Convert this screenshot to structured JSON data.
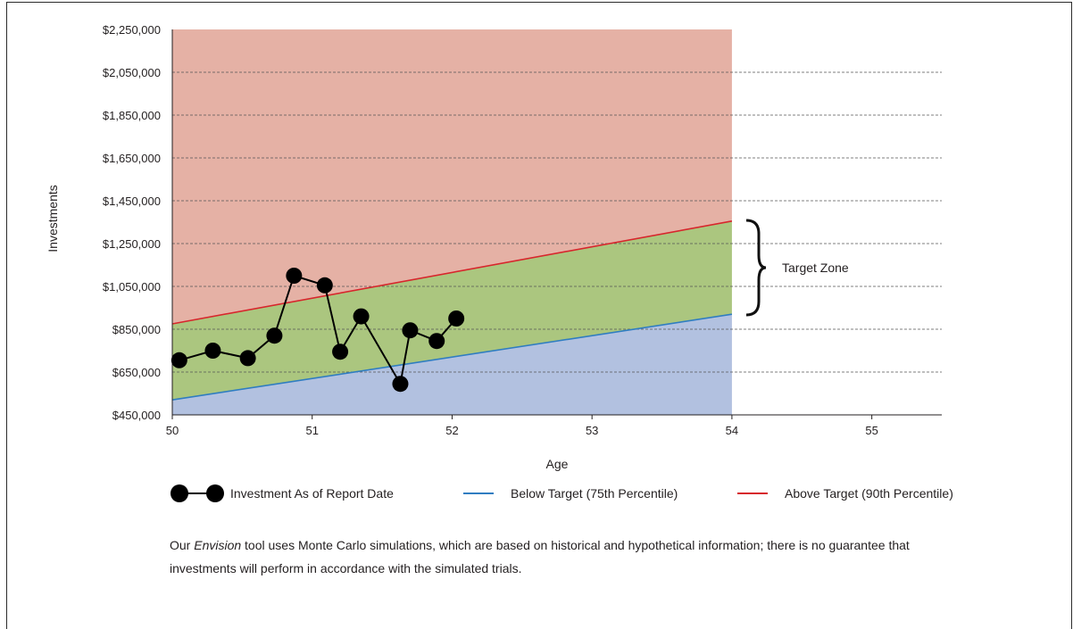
{
  "chart_data": {
    "type": "line",
    "xlabel": "Age",
    "ylabel": "Investments",
    "xlim": [
      50,
      55.5
    ],
    "ylim": [
      450000,
      2250000
    ],
    "x_ticks": [
      "50",
      "51",
      "52",
      "53",
      "54",
      "55"
    ],
    "y_ticks": [
      "$2,250,000",
      "$2,050,000",
      "$1,850,000",
      "$1,650,000",
      "$1,450,000",
      "$1,250,000",
      "$1,050,000",
      "$850,000",
      "$650,000",
      "$450,000"
    ],
    "y_tick_values": [
      2250000,
      2050000,
      1850000,
      1650000,
      1450000,
      1250000,
      1050000,
      850000,
      650000,
      450000
    ],
    "grid": "horizontal dashed",
    "zone_end_x": 54,
    "series": [
      {
        "name": "Investment As of Report Date",
        "kind": "markers-line",
        "color": "#000000",
        "x": [
          50.05,
          50.29,
          50.54,
          50.73,
          50.87,
          51.09,
          51.2,
          51.35,
          51.63,
          51.7,
          51.89,
          52.03
        ],
        "y": [
          705000,
          750000,
          715000,
          820000,
          1100000,
          1055000,
          745000,
          910000,
          595000,
          845000,
          795000,
          900000
        ]
      },
      {
        "name": "Below Target (75th Percentile)",
        "kind": "line",
        "color": "#2f7dc1",
        "x": [
          50,
          54
        ],
        "y": [
          520000,
          920000
        ]
      },
      {
        "name": "Above Target (90th Percentile)",
        "kind": "line",
        "color": "#d7262c",
        "x": [
          50,
          54
        ],
        "y": [
          875000,
          1355000
        ]
      }
    ],
    "zones": {
      "above_color": "#e5b1a5",
      "target_color": "#abc67f",
      "below_color": "#b2c1e0"
    },
    "annotation": "Target Zone"
  },
  "footnote": {
    "part1": "Our ",
    "italic": "Envision",
    "part2": " tool uses Monte Carlo simulations, which are based on historical and hypothetical information; there is no guarantee that investments will perform in accordance with the simulated trials."
  }
}
